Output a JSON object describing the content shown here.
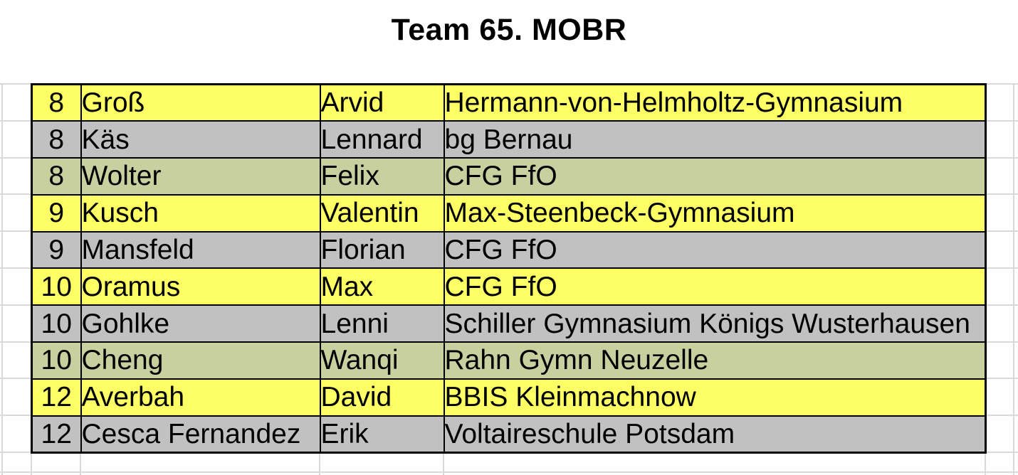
{
  "title": "Team 65. MOBR",
  "colors": {
    "row_yellow": "#FDFF64",
    "row_gray": "#C1C1C1",
    "row_green": "#C8D0A0",
    "cell_border": "#000000",
    "grid_line": "#D9D9D9",
    "text": "#000000"
  },
  "table": {
    "rows": [
      {
        "grade": "8",
        "last_name": "Groß",
        "first_name": "Arvid",
        "school": "Hermann-von-Helmholtz-Gymnasium",
        "row_color": "row_yellow"
      },
      {
        "grade": "8",
        "last_name": "Käs",
        "first_name": "Lennard",
        "school": "bg Bernau",
        "row_color": "row_gray"
      },
      {
        "grade": "8",
        "last_name": "Wolter",
        "first_name": "Felix",
        "school": "CFG FfO",
        "row_color": "row_green"
      },
      {
        "grade": "9",
        "last_name": "Kusch",
        "first_name": "Valentin",
        "school": "Max-Steenbeck-Gymnasium",
        "row_color": "row_yellow"
      },
      {
        "grade": "9",
        "last_name": "Mansfeld",
        "first_name": "Florian",
        "school": "CFG FfO",
        "row_color": "row_gray"
      },
      {
        "grade": "10",
        "last_name": "Oramus",
        "first_name": "Max",
        "school": "CFG FfO",
        "row_color": "row_yellow"
      },
      {
        "grade": "10",
        "last_name": "Gohlke",
        "first_name": "Lenni",
        "school": "Schiller Gymnasium Königs Wusterhausen",
        "row_color": "row_gray"
      },
      {
        "grade": "10",
        "last_name": "Cheng",
        "first_name": "Wanqi",
        "school": "Rahn Gymn Neuzelle",
        "row_color": "row_green"
      },
      {
        "grade": "12",
        "last_name": "Averbah",
        "first_name": "David",
        "school": "BBIS Kleinmachnow",
        "row_color": "row_yellow"
      },
      {
        "grade": "12",
        "last_name": "Cesca Fernandez",
        "first_name": "Erik",
        "school": "Voltaireschule Potsdam",
        "row_color": "row_gray"
      }
    ]
  }
}
